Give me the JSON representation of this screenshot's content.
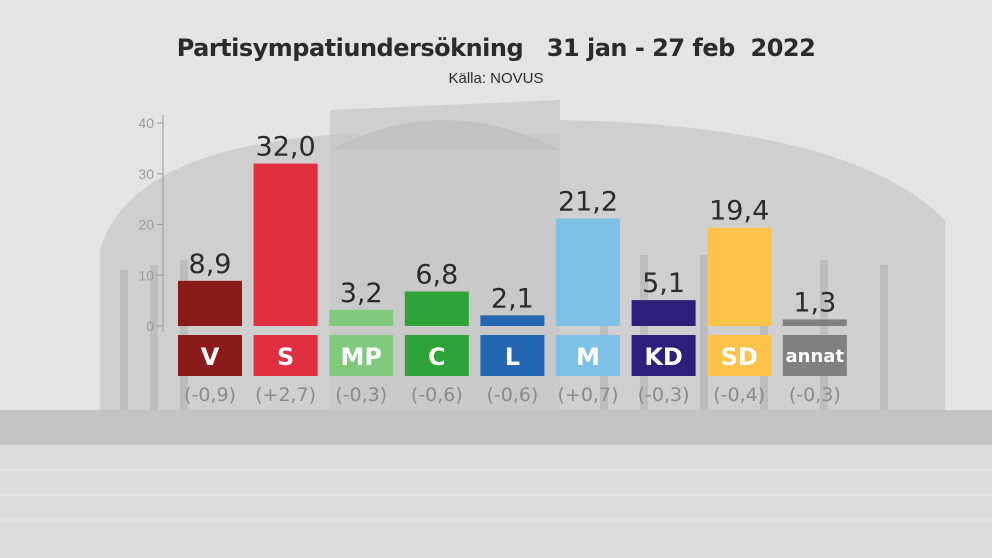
{
  "chart_data": {
    "type": "bar",
    "title": "Partisympatiundersökning   31 jan - 27 feb  2022",
    "subtitle": "Källa: NOVUS",
    "ylim": [
      0,
      40
    ],
    "yticks": [
      "0",
      "10",
      "20",
      "30",
      "40"
    ],
    "categories": [
      "V",
      "S",
      "MP",
      "C",
      "L",
      "M",
      "KD",
      "SD",
      "annat"
    ],
    "values": [
      8.9,
      32.0,
      3.2,
      6.8,
      2.1,
      21.2,
      5.1,
      19.4,
      1.3
    ],
    "value_labels": [
      "8,9",
      "32,0",
      "3,2",
      "6,8",
      "2,1",
      "21,2",
      "5,1",
      "19,4",
      "1,3"
    ],
    "changes": [
      "(-0,9)",
      "(+2,7)",
      "(-0,3)",
      "(-0,6)",
      "(-0,6)",
      "(+0,7)",
      "(-0,3)",
      "(-0,4)",
      "(-0,3)"
    ],
    "colors": [
      "#8b1a1a",
      "#e02f3e",
      "#7fca7d",
      "#2ea33a",
      "#2366b1",
      "#7fc1e6",
      "#2e1f7a",
      "#fbc34a",
      "#7f7f7f"
    ],
    "box_colors": [
      "#8b1a1a",
      "#e02f3e",
      "#7fca7d",
      "#2ea33a",
      "#2366b1",
      "#7fc1e6",
      "#2e1f7a",
      "#fbc34a",
      "#808080"
    ],
    "grid": false,
    "legend": "none"
  }
}
